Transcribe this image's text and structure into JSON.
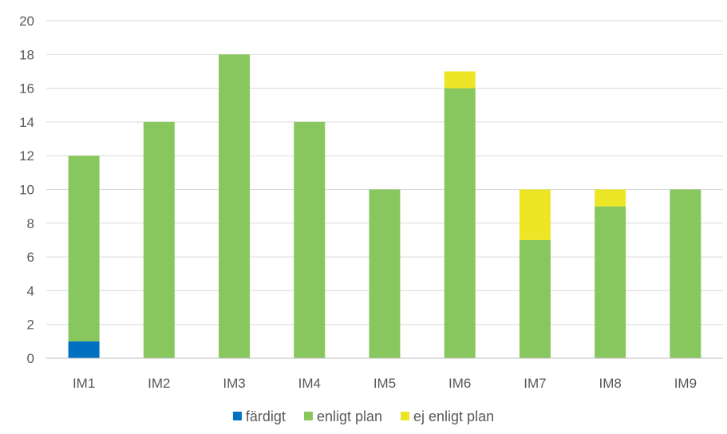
{
  "chart_data": {
    "type": "bar",
    "stacked": true,
    "categories": [
      "IM1",
      "IM2",
      "IM3",
      "IM4",
      "IM5",
      "IM6",
      "IM7",
      "IM8",
      "IM9"
    ],
    "series": [
      {
        "name": "färdigt",
        "color": "#0070c0",
        "values": [
          1,
          0,
          0,
          0,
          0,
          0,
          0,
          0,
          0
        ]
      },
      {
        "name": "enligt plan",
        "color": "#88c65e",
        "values": [
          11,
          14,
          18,
          14,
          10,
          16,
          7,
          9,
          10
        ]
      },
      {
        "name": "ej enligt plan",
        "color": "#ede626",
        "values": [
          0,
          0,
          0,
          0,
          0,
          1,
          3,
          1,
          0
        ]
      }
    ],
    "ylim": [
      0,
      20
    ],
    "yticks": [
      0,
      2,
      4,
      6,
      8,
      10,
      12,
      14,
      16,
      18,
      20
    ],
    "grid": true,
    "legend_position": "bottom"
  }
}
